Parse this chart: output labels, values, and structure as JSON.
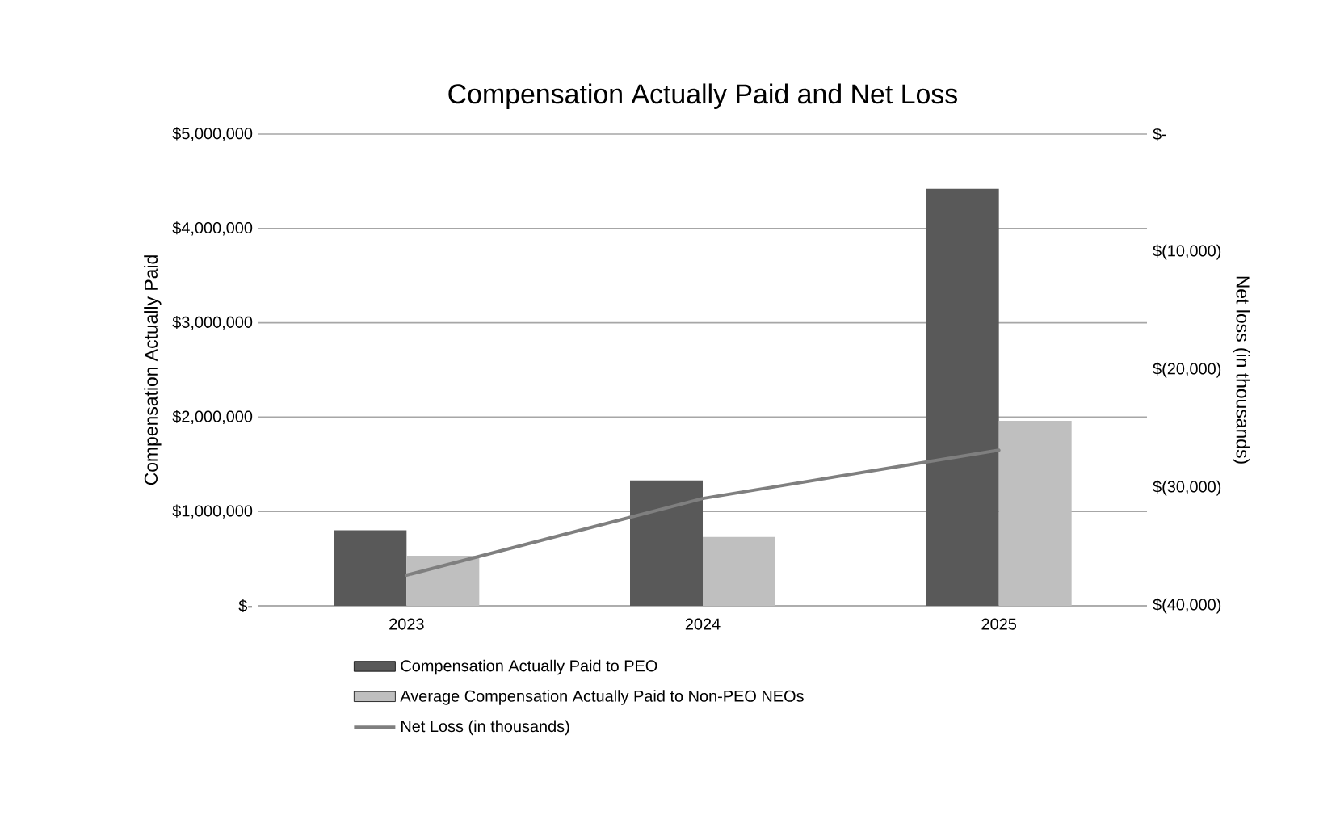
{
  "chart_data": {
    "type": "bar",
    "title": "Compensation Actually Paid and Net Loss",
    "categories": [
      "2023",
      "2024",
      "2025"
    ],
    "series": [
      {
        "name": "Compensation Actually Paid to PEO",
        "color": "#595959",
        "values": [
          800000,
          1330000,
          4420000
        ]
      },
      {
        "name": "Average Compensation Actually Paid to Non-PEO NEOs",
        "color": "#bfbfbf",
        "values": [
          530000,
          730000,
          1960000
        ]
      },
      {
        "name": "Net Loss (in thousands)",
        "type": "line",
        "axis": "y2",
        "color": "#7f7f7f",
        "marker": "none",
        "values": [
          -37400,
          -30900,
          -26800
        ]
      }
    ],
    "ylabel": "Compensation Actually Paid",
    "y2label": "Net loss (in thousands)",
    "ylim": [
      0,
      5000000
    ],
    "yticks": [
      {
        "value": 0,
        "label": "$-"
      },
      {
        "value": 1000000,
        "label": "$1,000,000"
      },
      {
        "value": 2000000,
        "label": "$2,000,000"
      },
      {
        "value": 3000000,
        "label": "$3,000,000"
      },
      {
        "value": 4000000,
        "label": "$4,000,000"
      },
      {
        "value": 5000000,
        "label": "$5,000,000"
      }
    ],
    "y2lim": [
      -40000,
      0
    ],
    "y2ticks": [
      {
        "value": -40000,
        "label": "$(40,000)"
      },
      {
        "value": -30000,
        "label": "$(30,000)"
      },
      {
        "value": -20000,
        "label": "$(20,000)"
      },
      {
        "value": -10000,
        "label": "$(10,000)"
      },
      {
        "value": 0,
        "label": "$-"
      }
    ],
    "grid": "y",
    "legend": "bottom"
  }
}
